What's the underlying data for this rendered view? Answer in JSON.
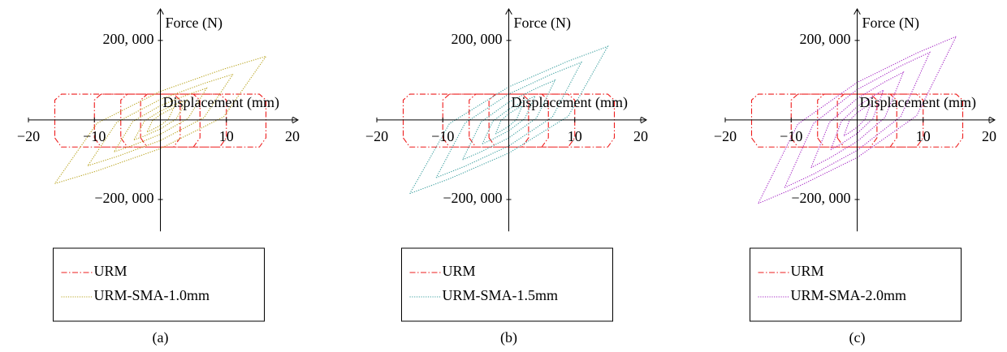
{
  "chart_data": [
    {
      "type": "line",
      "caption": "(a)",
      "xlabel": "Displacement (mm)",
      "ylabel": "Force (N)",
      "xlim": [
        -20,
        20
      ],
      "ylim": [
        -280000,
        265000
      ],
      "xticks": [
        {
          "value": -20,
          "label": "−20"
        },
        {
          "value": -10,
          "label": "−10"
        },
        10,
        20
      ],
      "yticks": [
        {
          "value": 200000,
          "label": "200, 000"
        },
        {
          "value": -200000,
          "label": "−200, 000"
        }
      ],
      "series": [
        {
          "name": "URM",
          "color": "#ee1c1c",
          "dash": "dashdot",
          "x": [
            -16,
            -15,
            15,
            16,
            16,
            15,
            -15,
            -16,
            -16,
            null,
            -10,
            -9,
            9,
            10,
            10,
            9,
            -9,
            -10,
            -10,
            null,
            -6,
            -5,
            5,
            6,
            6,
            5,
            -5,
            -6,
            -6,
            null,
            -3,
            -2,
            2,
            3,
            3,
            2,
            -2,
            -3,
            -3
          ],
          "values": [
            -45000,
            -68000,
            -68000,
            -45000,
            50000,
            65000,
            65000,
            50000,
            -45000,
            null,
            -45000,
            -68000,
            -68000,
            -45000,
            50000,
            65000,
            65000,
            50000,
            -45000,
            null,
            -45000,
            -68000,
            -68000,
            -45000,
            50000,
            65000,
            65000,
            50000,
            -45000,
            null,
            -45000,
            -68000,
            -68000,
            -45000,
            50000,
            65000,
            65000,
            50000,
            -45000
          ]
        },
        {
          "name": "URM-SMA-1.0mm",
          "color": "#b8a31c",
          "dash": "dotted",
          "x": [
            -16,
            -9.6,
            0,
            9.6,
            16,
            9.6,
            0,
            -9.6,
            -16,
            null,
            -11,
            -6.6,
            0,
            6.6,
            11,
            6.6,
            0,
            -6.6,
            -11,
            null,
            -7,
            -4.2,
            0,
            4.2,
            7,
            4.2,
            0,
            -4.2,
            -7,
            null,
            -4,
            -2.4,
            0,
            2.4,
            4,
            2.4,
            0,
            -2.4,
            -4,
            null,
            -2,
            -1.2,
            0,
            1.2,
            2,
            1.2,
            0,
            -1.2,
            -2
          ],
          "values": [
            -160000,
            -128000,
            -72000,
            8000,
            160000,
            128000,
            72000,
            -8000,
            -160000,
            null,
            -115000,
            -92000,
            -51750,
            5750,
            115000,
            92000,
            51750,
            -5750,
            -115000,
            null,
            -80000,
            -64000,
            -36000,
            4000,
            80000,
            64000,
            36000,
            -4000,
            -80000,
            null,
            -50000,
            -40000,
            -22500,
            2500,
            50000,
            40000,
            22500,
            -2500,
            -50000,
            null,
            -30000,
            -24000,
            -13500,
            1500,
            30000,
            24000,
            13500,
            -1500,
            -30000
          ]
        }
      ]
    },
    {
      "type": "line",
      "caption": "(b)",
      "xlabel": "Displacement (mm)",
      "ylabel": "Force (N)",
      "xlim": [
        -20,
        20
      ],
      "ylim": [
        -280000,
        265000
      ],
      "xticks": [
        {
          "value": -20,
          "label": "−20"
        },
        {
          "value": -10,
          "label": "−10"
        },
        10,
        20
      ],
      "yticks": [
        {
          "value": 200000,
          "label": "200, 000"
        },
        {
          "value": -200000,
          "label": "−200, 000"
        }
      ],
      "series": [
        {
          "name": "URM",
          "color": "#ee1c1c",
          "dash": "dashdot",
          "x": [
            -16,
            -15,
            15,
            16,
            16,
            15,
            -15,
            -16,
            -16,
            null,
            -10,
            -9,
            9,
            10,
            10,
            9,
            -9,
            -10,
            -10,
            null,
            -6,
            -5,
            5,
            6,
            6,
            5,
            -5,
            -6,
            -6,
            null,
            -3,
            -2,
            2,
            3,
            3,
            2,
            -2,
            -3,
            -3
          ],
          "values": [
            -45000,
            -68000,
            -68000,
            -45000,
            50000,
            65000,
            65000,
            50000,
            -45000,
            null,
            -45000,
            -68000,
            -68000,
            -45000,
            50000,
            65000,
            65000,
            50000,
            -45000,
            null,
            -45000,
            -68000,
            -68000,
            -45000,
            50000,
            65000,
            65000,
            50000,
            -45000,
            null,
            -45000,
            -68000,
            -68000,
            -45000,
            50000,
            65000,
            65000,
            50000,
            -45000
          ]
        },
        {
          "name": "URM-SMA-1.5mm",
          "color": "#3a9f9f",
          "dash": "dotted",
          "x": [
            -15,
            -9,
            0,
            9,
            15,
            9,
            0,
            -9,
            -15,
            null,
            -11,
            -6.6,
            0,
            6.6,
            11,
            6.6,
            0,
            -6.6,
            -11,
            null,
            -7,
            -4.2,
            0,
            4.2,
            7,
            4.2,
            0,
            -4.2,
            -7,
            null,
            -4,
            -2.4,
            0,
            2.4,
            4,
            2.4,
            0,
            -2.4,
            -4,
            null,
            -2,
            -1.2,
            0,
            1.2,
            2,
            1.2,
            0,
            -1.2,
            -2
          ],
          "values": [
            -185000,
            -148000,
            -83250,
            9250,
            185000,
            148000,
            83250,
            -9250,
            -185000,
            null,
            -145000,
            -116000,
            -65250,
            7250,
            145000,
            116000,
            65250,
            -7250,
            -145000,
            null,
            -100000,
            -80000,
            -45000,
            5000,
            100000,
            80000,
            45000,
            -5000,
            -100000,
            null,
            -60000,
            -48000,
            -27000,
            3000,
            60000,
            48000,
            27000,
            -3000,
            -60000,
            null,
            -35000,
            -28000,
            -15750,
            1750,
            35000,
            28000,
            15750,
            -1750,
            -35000
          ]
        }
      ]
    },
    {
      "type": "line",
      "caption": "(c)",
      "xlabel": "Displacement (mm)",
      "ylabel": "Force (N)",
      "xlim": [
        -20,
        20
      ],
      "ylim": [
        -280000,
        265000
      ],
      "xticks": [
        {
          "value": -20,
          "label": "−20"
        },
        {
          "value": -10,
          "label": "−10"
        },
        10,
        20
      ],
      "yticks": [
        {
          "value": 200000,
          "label": "200, 000"
        },
        {
          "value": -200000,
          "label": "−200, 000"
        }
      ],
      "series": [
        {
          "name": "URM",
          "color": "#ee1c1c",
          "dash": "dashdot",
          "x": [
            -16,
            -15,
            15,
            16,
            16,
            15,
            -15,
            -16,
            -16,
            null,
            -10,
            -9,
            9,
            10,
            10,
            9,
            -9,
            -10,
            -10,
            null,
            -6,
            -5,
            5,
            6,
            6,
            5,
            -5,
            -6,
            -6,
            null,
            -3,
            -2,
            2,
            3,
            3,
            2,
            -2,
            -3,
            -3
          ],
          "values": [
            -45000,
            -68000,
            -68000,
            -45000,
            50000,
            65000,
            65000,
            50000,
            -45000,
            null,
            -45000,
            -68000,
            -68000,
            -45000,
            50000,
            65000,
            65000,
            50000,
            -45000,
            null,
            -45000,
            -68000,
            -68000,
            -45000,
            50000,
            65000,
            65000,
            50000,
            -45000,
            null,
            -45000,
            -68000,
            -68000,
            -45000,
            50000,
            65000,
            65000,
            50000,
            -45000
          ]
        },
        {
          "name": "URM-SMA-2.0mm",
          "color": "#a526c4",
          "dash": "dotted",
          "x": [
            -15,
            -9,
            0,
            9,
            15,
            9,
            0,
            -9,
            -15,
            null,
            -11,
            -6.6,
            0,
            6.6,
            11,
            6.6,
            0,
            -6.6,
            -11,
            null,
            -7,
            -4.2,
            0,
            4.2,
            7,
            4.2,
            0,
            -4.2,
            -7,
            null,
            -4,
            -2.4,
            0,
            2.4,
            4,
            2.4,
            0,
            -2.4,
            -4,
            null,
            -2,
            -1.2,
            0,
            1.2,
            2,
            1.2,
            0,
            -1.2,
            -2
          ],
          "values": [
            -210000,
            -168000,
            -94500,
            10500,
            210000,
            168000,
            94500,
            -10500,
            -210000,
            null,
            -170000,
            -136000,
            -76500,
            8500,
            170000,
            136000,
            76500,
            -8500,
            -170000,
            null,
            -120000,
            -96000,
            -54000,
            6000,
            120000,
            96000,
            54000,
            -6000,
            -120000,
            null,
            -75000,
            -60000,
            -33750,
            3750,
            75000,
            60000,
            33750,
            -3750,
            -75000,
            null,
            -40000,
            -32000,
            -18000,
            2000,
            40000,
            32000,
            18000,
            -2000,
            -40000
          ]
        }
      ]
    }
  ]
}
